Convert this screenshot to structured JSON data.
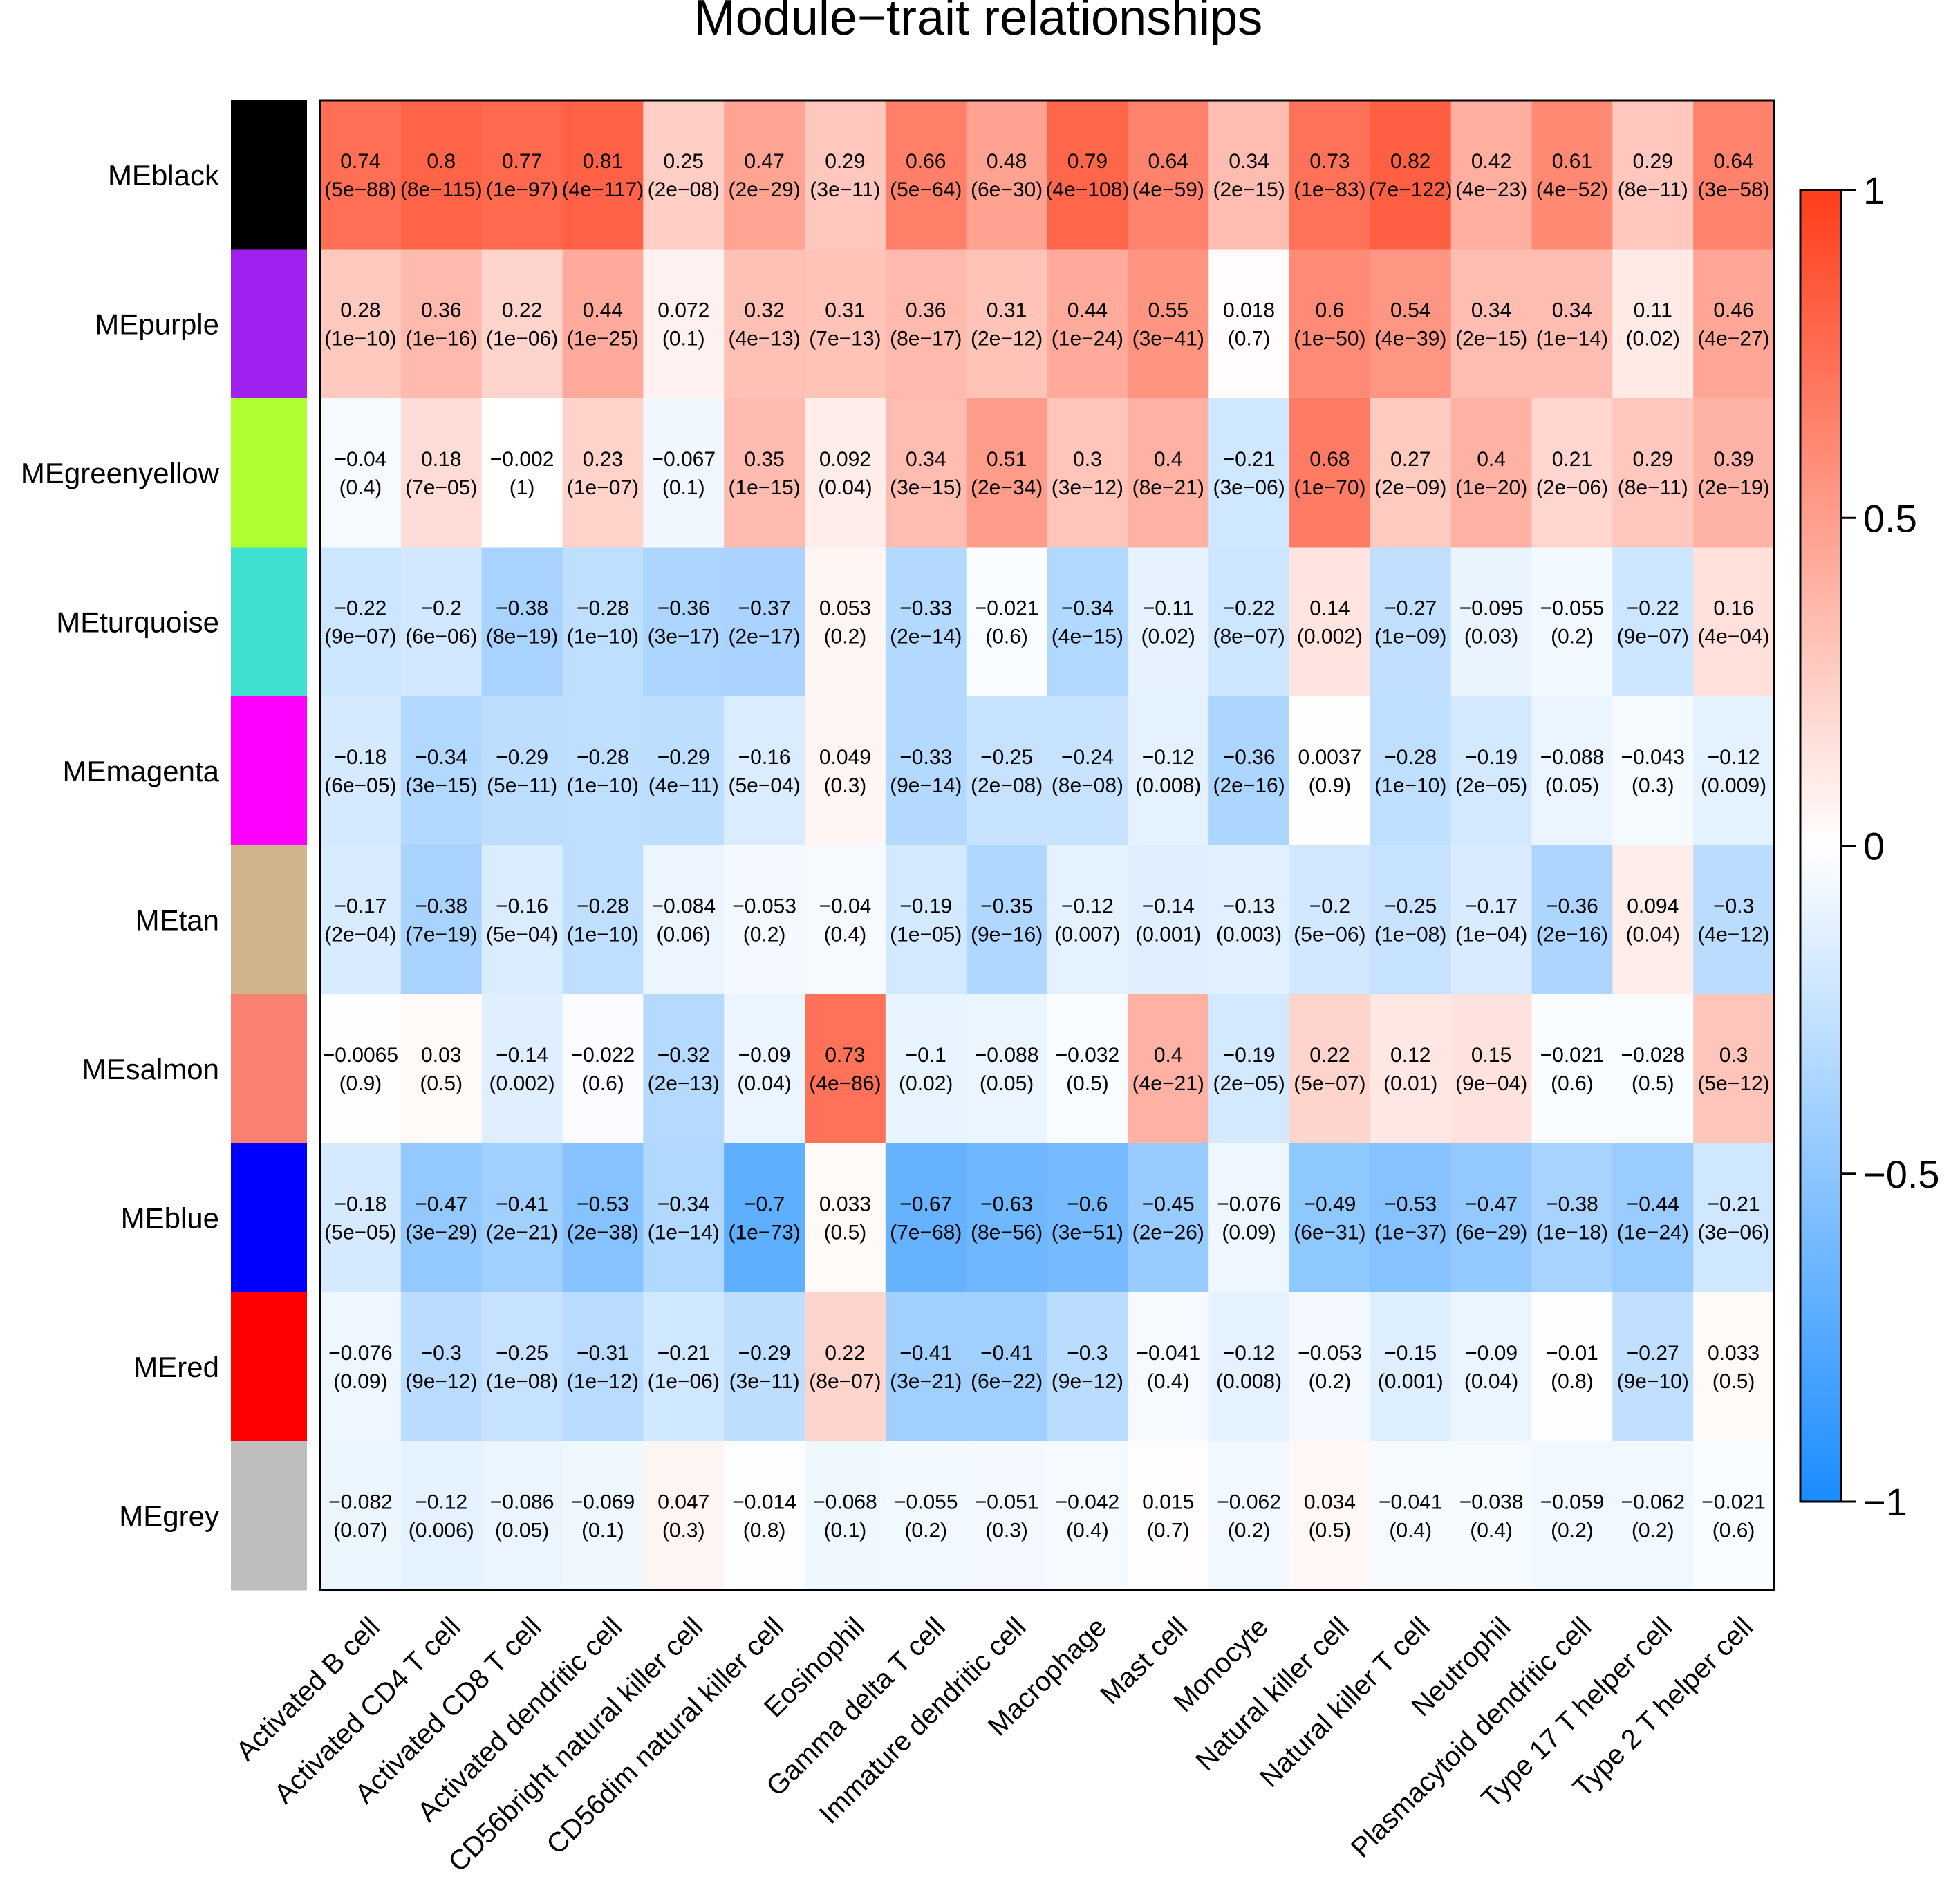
{
  "chart_data": {
    "type": "heatmap",
    "title": "Module−trait relationships",
    "rows": [
      {
        "label": "MEblack",
        "swatch": "#000000"
      },
      {
        "label": "MEpurple",
        "swatch": "#A020F0"
      },
      {
        "label": "MEgreenyellow",
        "swatch": "#ADFF2F"
      },
      {
        "label": "MEturquoise",
        "swatch": "#40E0D0"
      },
      {
        "label": "MEmagenta",
        "swatch": "#FF00FF"
      },
      {
        "label": "MEtan",
        "swatch": "#D2B48C"
      },
      {
        "label": "MEsalmon",
        "swatch": "#FA8072"
      },
      {
        "label": "MEblue",
        "swatch": "#0000FF"
      },
      {
        "label": "MEred",
        "swatch": "#FF0000"
      },
      {
        "label": "MEgrey",
        "swatch": "#BEBEBE"
      }
    ],
    "columns": [
      "Activated B cell",
      "Activated CD4 T cell",
      "Activated CD8 T cell",
      "Activated dendritic cell",
      "CD56bright natural killer cell",
      "CD56dim natural killer cell",
      "Eosinophil",
      "Gamma delta T cell",
      "Immature dendritic cell",
      "Macrophage",
      "Mast cell",
      "Monocyte",
      "Natural killer cell",
      "Natural killer T cell",
      "Neutrophil",
      "Plasmacytoid dendritic cell",
      "Type 17 T helper cell",
      "Type 2 T helper cell"
    ],
    "values": [
      [
        0.74,
        0.8,
        0.77,
        0.81,
        0.25,
        0.47,
        0.29,
        0.66,
        0.48,
        0.79,
        0.64,
        0.34,
        0.73,
        0.82,
        0.42,
        0.61,
        0.29,
        0.64
      ],
      [
        0.28,
        0.36,
        0.22,
        0.44,
        0.072,
        0.32,
        0.31,
        0.36,
        0.31,
        0.44,
        0.55,
        0.018,
        0.6,
        0.54,
        0.34,
        0.34,
        0.11,
        0.46
      ],
      [
        -0.04,
        0.18,
        -0.002,
        0.23,
        -0.067,
        0.35,
        0.092,
        0.34,
        0.51,
        0.3,
        0.4,
        -0.21,
        0.68,
        0.27,
        0.4,
        0.21,
        0.29,
        0.39
      ],
      [
        -0.22,
        -0.2,
        -0.38,
        -0.28,
        -0.36,
        -0.37,
        0.053,
        -0.33,
        -0.021,
        -0.34,
        -0.11,
        -0.22,
        0.14,
        -0.27,
        -0.095,
        -0.055,
        -0.22,
        0.16
      ],
      [
        -0.18,
        -0.34,
        -0.29,
        -0.28,
        -0.29,
        -0.16,
        0.049,
        -0.33,
        -0.25,
        -0.24,
        -0.12,
        -0.36,
        0.0037,
        -0.28,
        -0.19,
        -0.088,
        -0.043,
        -0.12
      ],
      [
        -0.17,
        -0.38,
        -0.16,
        -0.28,
        -0.084,
        -0.053,
        -0.04,
        -0.19,
        -0.35,
        -0.12,
        -0.14,
        -0.13,
        -0.2,
        -0.25,
        -0.17,
        -0.36,
        0.094,
        -0.3
      ],
      [
        -0.0065,
        0.03,
        -0.14,
        -0.022,
        -0.32,
        -0.09,
        0.73,
        -0.1,
        -0.088,
        -0.032,
        0.4,
        -0.19,
        0.22,
        0.12,
        0.15,
        -0.021,
        -0.028,
        0.3
      ],
      [
        -0.18,
        -0.47,
        -0.41,
        -0.53,
        -0.34,
        -0.7,
        0.033,
        -0.67,
        -0.63,
        -0.6,
        -0.45,
        -0.076,
        -0.49,
        -0.53,
        -0.47,
        -0.38,
        -0.44,
        -0.21
      ],
      [
        -0.076,
        -0.3,
        -0.25,
        -0.31,
        -0.21,
        -0.29,
        0.22,
        -0.41,
        -0.41,
        -0.3,
        -0.041,
        -0.12,
        -0.053,
        -0.15,
        -0.09,
        -0.01,
        -0.27,
        0.033
      ],
      [
        -0.082,
        -0.12,
        -0.086,
        -0.069,
        0.047,
        -0.014,
        -0.068,
        -0.055,
        -0.051,
        -0.042,
        0.015,
        -0.062,
        0.034,
        -0.041,
        -0.038,
        -0.059,
        -0.062,
        -0.021
      ]
    ],
    "value_labels": [
      [
        "0.74",
        "0.8",
        "0.77",
        "0.81",
        "0.25",
        "0.47",
        "0.29",
        "0.66",
        "0.48",
        "0.79",
        "0.64",
        "0.34",
        "0.73",
        "0.82",
        "0.42",
        "0.61",
        "0.29",
        "0.64"
      ],
      [
        "0.28",
        "0.36",
        "0.22",
        "0.44",
        "0.072",
        "0.32",
        "0.31",
        "0.36",
        "0.31",
        "0.44",
        "0.55",
        "0.018",
        "0.6",
        "0.54",
        "0.34",
        "0.34",
        "0.11",
        "0.46"
      ],
      [
        "−0.04",
        "0.18",
        "−0.002",
        "0.23",
        "−0.067",
        "0.35",
        "0.092",
        "0.34",
        "0.51",
        "0.3",
        "0.4",
        "−0.21",
        "0.68",
        "0.27",
        "0.4",
        "0.21",
        "0.29",
        "0.39"
      ],
      [
        "−0.22",
        "−0.2",
        "−0.38",
        "−0.28",
        "−0.36",
        "−0.37",
        "0.053",
        "−0.33",
        "−0.021",
        "−0.34",
        "−0.11",
        "−0.22",
        "0.14",
        "−0.27",
        "−0.095",
        "−0.055",
        "−0.22",
        "0.16"
      ],
      [
        "−0.18",
        "−0.34",
        "−0.29",
        "−0.28",
        "−0.29",
        "−0.16",
        "0.049",
        "−0.33",
        "−0.25",
        "−0.24",
        "−0.12",
        "−0.36",
        "0.0037",
        "−0.28",
        "−0.19",
        "−0.088",
        "−0.043",
        "−0.12"
      ],
      [
        "−0.17",
        "−0.38",
        "−0.16",
        "−0.28",
        "−0.084",
        "−0.053",
        "−0.04",
        "−0.19",
        "−0.35",
        "−0.12",
        "−0.14",
        "−0.13",
        "−0.2",
        "−0.25",
        "−0.17",
        "−0.36",
        "0.094",
        "−0.3"
      ],
      [
        "−0.0065",
        "0.03",
        "−0.14",
        "−0.022",
        "−0.32",
        "−0.09",
        "0.73",
        "−0.1",
        "−0.088",
        "−0.032",
        "0.4",
        "−0.19",
        "0.22",
        "0.12",
        "0.15",
        "−0.021",
        "−0.028",
        "0.3"
      ],
      [
        "−0.18",
        "−0.47",
        "−0.41",
        "−0.53",
        "−0.34",
        "−0.7",
        "0.033",
        "−0.67",
        "−0.63",
        "−0.6",
        "−0.45",
        "−0.076",
        "−0.49",
        "−0.53",
        "−0.47",
        "−0.38",
        "−0.44",
        "−0.21"
      ],
      [
        "−0.076",
        "−0.3",
        "−0.25",
        "−0.31",
        "−0.21",
        "−0.29",
        "0.22",
        "−0.41",
        "−0.41",
        "−0.3",
        "−0.041",
        "−0.12",
        "−0.053",
        "−0.15",
        "−0.09",
        "−0.01",
        "−0.27",
        "0.033"
      ],
      [
        "−0.082",
        "−0.12",
        "−0.086",
        "−0.069",
        "0.047",
        "−0.014",
        "−0.068",
        "−0.055",
        "−0.051",
        "−0.042",
        "0.015",
        "−0.062",
        "0.034",
        "−0.041",
        "−0.038",
        "−0.059",
        "−0.062",
        "−0.021"
      ]
    ],
    "pvalues": [
      [
        "5e−88",
        "8e−115",
        "1e−97",
        "4e−117",
        "2e−08",
        "2e−29",
        "3e−11",
        "5e−64",
        "6e−30",
        "4e−108",
        "4e−59",
        "2e−15",
        "1e−83",
        "7e−122",
        "4e−23",
        "4e−52",
        "8e−11",
        "3e−58"
      ],
      [
        "1e−10",
        "1e−16",
        "1e−06",
        "1e−25",
        "0.1",
        "4e−13",
        "7e−13",
        "8e−17",
        "2e−12",
        "1e−24",
        "3e−41",
        "0.7",
        "1e−50",
        "4e−39",
        "2e−15",
        "1e−14",
        "0.02",
        "4e−27"
      ],
      [
        "0.4",
        "7e−05",
        "1",
        "1e−07",
        "0.1",
        "1e−15",
        "0.04",
        "3e−15",
        "2e−34",
        "3e−12",
        "8e−21",
        "3e−06",
        "1e−70",
        "2e−09",
        "1e−20",
        "2e−06",
        "8e−11",
        "2e−19"
      ],
      [
        "9e−07",
        "6e−06",
        "8e−19",
        "1e−10",
        "3e−17",
        "2e−17",
        "0.2",
        "2e−14",
        "0.6",
        "4e−15",
        "0.02",
        "8e−07",
        "0.002",
        "1e−09",
        "0.03",
        "0.2",
        "9e−07",
        "4e−04"
      ],
      [
        "6e−05",
        "3e−15",
        "5e−11",
        "1e−10",
        "4e−11",
        "5e−04",
        "0.3",
        "9e−14",
        "2e−08",
        "8e−08",
        "0.008",
        "2e−16",
        "0.9",
        "1e−10",
        "2e−05",
        "0.05",
        "0.3",
        "0.009"
      ],
      [
        "2e−04",
        "7e−19",
        "5e−04",
        "1e−10",
        "0.06",
        "0.2",
        "0.4",
        "1e−05",
        "9e−16",
        "0.007",
        "0.001",
        "0.003",
        "5e−06",
        "1e−08",
        "1e−04",
        "2e−16",
        "0.04",
        "4e−12"
      ],
      [
        "0.9",
        "0.5",
        "0.002",
        "0.6",
        "2e−13",
        "0.04",
        "4e−86",
        "0.02",
        "0.05",
        "0.5",
        "4e−21",
        "2e−05",
        "5e−07",
        "0.01",
        "9e−04",
        "0.6",
        "0.5",
        "5e−12"
      ],
      [
        "5e−05",
        "3e−29",
        "2e−21",
        "2e−38",
        "1e−14",
        "1e−73",
        "0.5",
        "7e−68",
        "8e−56",
        "3e−51",
        "2e−26",
        "0.09",
        "6e−31",
        "1e−37",
        "6e−29",
        "1e−18",
        "1e−24",
        "3e−06"
      ],
      [
        "0.09",
        "9e−12",
        "1e−08",
        "1e−12",
        "1e−06",
        "3e−11",
        "8e−07",
        "3e−21",
        "6e−22",
        "9e−12",
        "0.4",
        "0.008",
        "0.2",
        "0.001",
        "0.04",
        "0.8",
        "9e−10",
        "0.5"
      ],
      [
        "0.07",
        "0.006",
        "0.05",
        "0.1",
        "0.3",
        "0.8",
        "0.1",
        "0.2",
        "0.3",
        "0.4",
        "0.7",
        "0.2",
        "0.5",
        "0.4",
        "0.4",
        "0.2",
        "0.2",
        "0.6"
      ]
    ],
    "colorbar": {
      "range": [
        -1,
        1
      ],
      "ticks": [
        1,
        0.5,
        0,
        -0.5,
        -1
      ],
      "tick_labels": [
        "1",
        "0.5",
        "0",
        "−0.5",
        "−1"
      ]
    },
    "colors": {
      "high": "#FF3D1A",
      "mid": "#FFFFFF",
      "low": "#1A8CFF"
    }
  }
}
